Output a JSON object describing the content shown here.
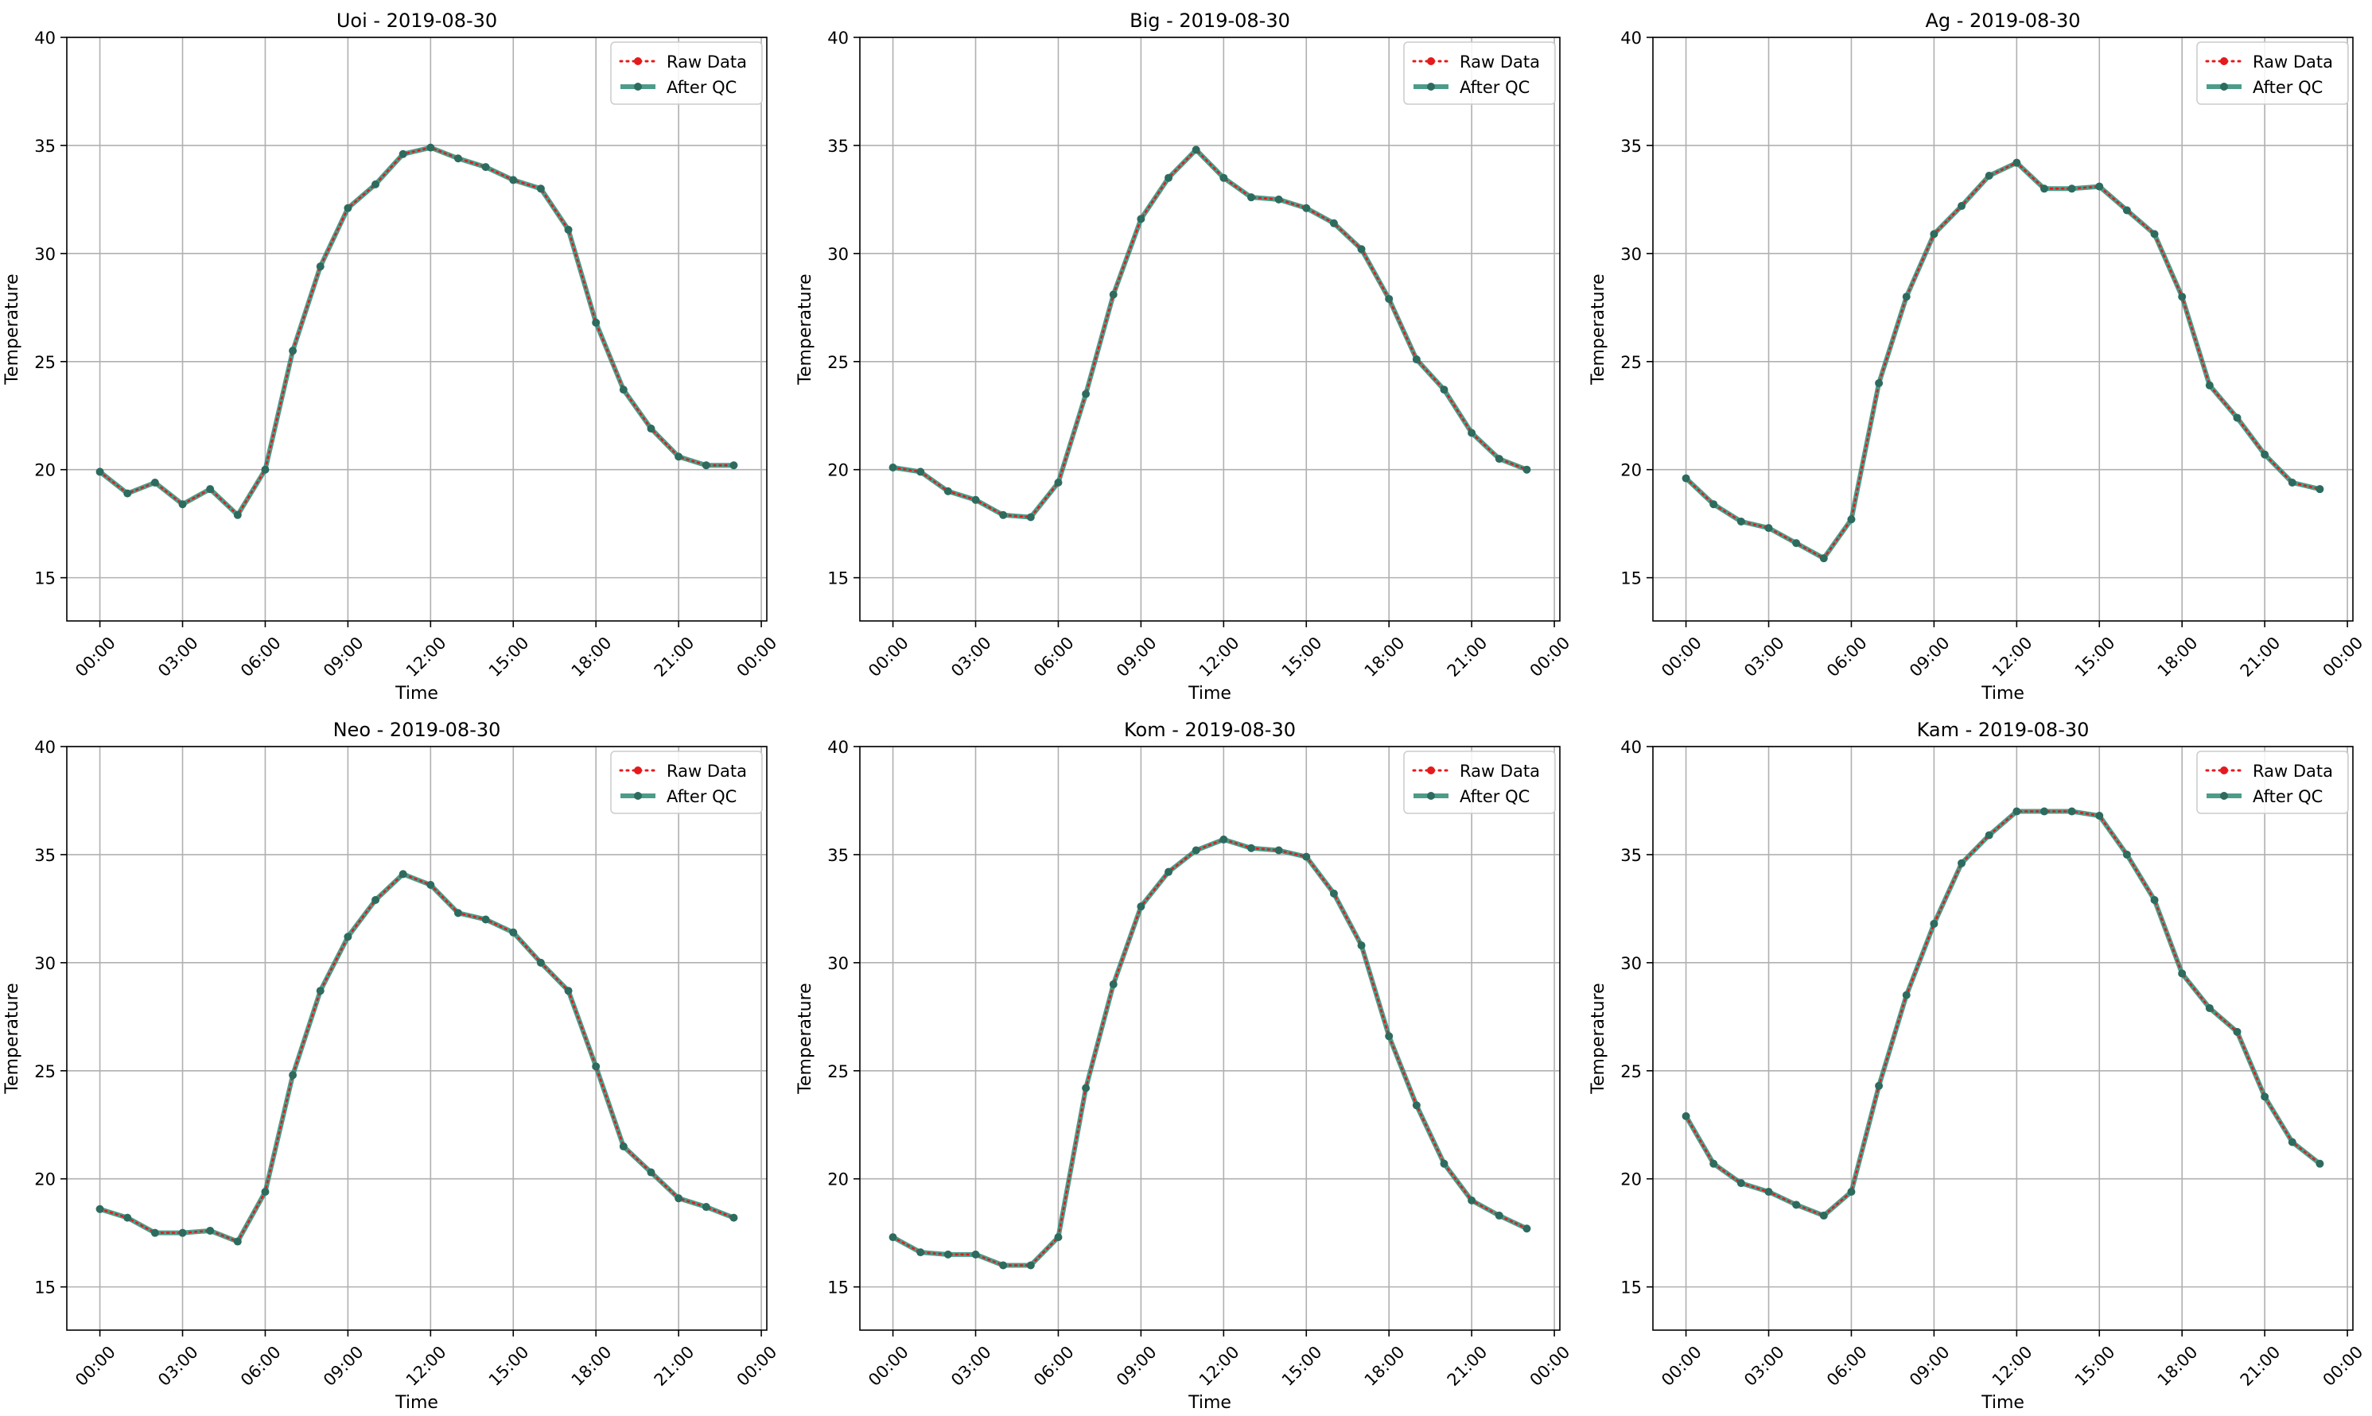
{
  "chart_data": {
    "type": "line",
    "x_ticks": [
      "00:00",
      "03:00",
      "06:00",
      "09:00",
      "12:00",
      "15:00",
      "18:00",
      "21:00",
      "00:00"
    ],
    "y_ticks": [
      "15",
      "20",
      "25",
      "30",
      "35",
      "40"
    ],
    "xlabel": "Time",
    "ylabel": "Temperature",
    "ylim": [
      13,
      40
    ],
    "xlim_hours": [
      -1.2,
      24.2
    ],
    "grid": true,
    "legend_placement": "top-right",
    "legend": [
      "Raw Data",
      "After QC"
    ],
    "colors": {
      "raw": "#e41a1c",
      "qc": "#2e8b74",
      "marker": "#2e6b5f",
      "grid": "#b0b0b0"
    },
    "hours": [
      0,
      1,
      2,
      3,
      4,
      5,
      6,
      7,
      8,
      9,
      10,
      11,
      12,
      13,
      14,
      15,
      16,
      17,
      18,
      19,
      20,
      21,
      22,
      23
    ],
    "panels": [
      {
        "title": "Uoi - 2019-08-30",
        "series": [
          {
            "name": "Raw Data",
            "values": [
              19.9,
              18.9,
              19.4,
              18.4,
              19.1,
              17.9,
              20.0,
              25.5,
              29.4,
              32.1,
              33.2,
              34.6,
              34.9,
              34.4,
              34.0,
              33.4,
              33.0,
              31.1,
              26.8,
              23.7,
              21.9,
              20.6,
              20.2,
              20.2
            ]
          },
          {
            "name": "After QC",
            "values": [
              19.9,
              18.9,
              19.4,
              18.4,
              19.1,
              17.9,
              20.0,
              25.5,
              29.4,
              32.1,
              33.2,
              34.6,
              34.9,
              34.4,
              34.0,
              33.4,
              33.0,
              31.1,
              26.8,
              23.7,
              21.9,
              20.6,
              20.2,
              20.2
            ]
          }
        ]
      },
      {
        "title": "Big - 2019-08-30",
        "series": [
          {
            "name": "Raw Data",
            "values": [
              20.1,
              19.9,
              19.0,
              18.6,
              17.9,
              17.8,
              19.4,
              23.5,
              28.1,
              31.6,
              33.5,
              34.8,
              33.5,
              32.6,
              32.5,
              32.1,
              31.4,
              30.2,
              27.9,
              25.1,
              23.7,
              21.7,
              20.5,
              20.0
            ]
          },
          {
            "name": "After QC",
            "values": [
              20.1,
              19.9,
              19.0,
              18.6,
              17.9,
              17.8,
              19.4,
              23.5,
              28.1,
              31.6,
              33.5,
              34.8,
              33.5,
              32.6,
              32.5,
              32.1,
              31.4,
              30.2,
              27.9,
              25.1,
              23.7,
              21.7,
              20.5,
              20.0
            ]
          }
        ]
      },
      {
        "title": "Ag - 2019-08-30",
        "series": [
          {
            "name": "Raw Data",
            "values": [
              19.6,
              18.4,
              17.6,
              17.3,
              16.6,
              15.9,
              17.7,
              24.0,
              28.0,
              30.9,
              32.2,
              33.6,
              34.2,
              33.0,
              33.0,
              33.1,
              32.0,
              30.9,
              28.0,
              23.9,
              22.4,
              20.7,
              19.4,
              19.1
            ]
          },
          {
            "name": "After QC",
            "values": [
              19.6,
              18.4,
              17.6,
              17.3,
              16.6,
              15.9,
              17.7,
              24.0,
              28.0,
              30.9,
              32.2,
              33.6,
              34.2,
              33.0,
              33.0,
              33.1,
              32.0,
              30.9,
              28.0,
              23.9,
              22.4,
              20.7,
              19.4,
              19.1
            ]
          }
        ]
      },
      {
        "title": "Neo - 2019-08-30",
        "series": [
          {
            "name": "Raw Data",
            "values": [
              18.6,
              18.2,
              17.5,
              17.5,
              17.6,
              17.1,
              19.4,
              24.8,
              28.7,
              31.2,
              32.9,
              34.1,
              33.6,
              32.3,
              32.0,
              31.4,
              30.0,
              28.7,
              25.2,
              21.5,
              20.3,
              19.1,
              18.7,
              18.2
            ]
          },
          {
            "name": "After QC",
            "values": [
              18.6,
              18.2,
              17.5,
              17.5,
              17.6,
              17.1,
              19.4,
              24.8,
              28.7,
              31.2,
              32.9,
              34.1,
              33.6,
              32.3,
              32.0,
              31.4,
              30.0,
              28.7,
              25.2,
              21.5,
              20.3,
              19.1,
              18.7,
              18.2
            ]
          }
        ]
      },
      {
        "title": "Kom - 2019-08-30",
        "series": [
          {
            "name": "Raw Data",
            "values": [
              17.3,
              16.6,
              16.5,
              16.5,
              16.0,
              16.0,
              17.3,
              24.2,
              29.0,
              32.6,
              34.2,
              35.2,
              35.7,
              35.3,
              35.2,
              34.9,
              33.2,
              30.8,
              26.6,
              23.4,
              20.7,
              19.0,
              18.3,
              17.7
            ]
          },
          {
            "name": "After QC",
            "values": [
              17.3,
              16.6,
              16.5,
              16.5,
              16.0,
              16.0,
              17.3,
              24.2,
              29.0,
              32.6,
              34.2,
              35.2,
              35.7,
              35.3,
              35.2,
              34.9,
              33.2,
              30.8,
              26.6,
              23.4,
              20.7,
              19.0,
              18.3,
              17.7
            ]
          }
        ]
      },
      {
        "title": "Kam - 2019-08-30",
        "series": [
          {
            "name": "Raw Data",
            "values": [
              22.9,
              20.7,
              19.8,
              19.4,
              18.8,
              18.3,
              19.4,
              24.3,
              28.5,
              31.8,
              34.6,
              35.9,
              37.0,
              37.0,
              37.0,
              36.8,
              35.0,
              32.9,
              29.5,
              27.9,
              26.8,
              23.8,
              21.7,
              20.7
            ]
          },
          {
            "name": "After QC",
            "values": [
              22.9,
              20.7,
              19.8,
              19.4,
              18.8,
              18.3,
              19.4,
              24.3,
              28.5,
              31.8,
              34.6,
              35.9,
              37.0,
              37.0,
              37.0,
              36.8,
              35.0,
              32.9,
              29.5,
              27.9,
              26.8,
              23.8,
              21.7,
              20.7
            ]
          }
        ]
      }
    ]
  }
}
